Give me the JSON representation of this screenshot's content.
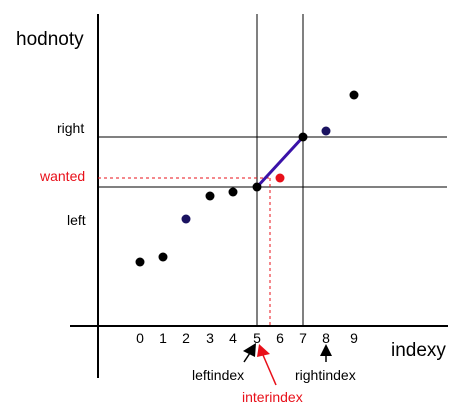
{
  "axis_labels": {
    "y": "hodnoty",
    "x": "indexy"
  },
  "level_labels": {
    "right": "right",
    "wanted": "wanted",
    "left": "left"
  },
  "pointer_labels": {
    "left": "leftindex",
    "inter": "interindex",
    "right": "rightindex"
  },
  "tick_labels": [
    "0",
    "1",
    "2",
    "3",
    "4",
    "5",
    "6",
    "7",
    "8",
    "9"
  ],
  "chart_data": {
    "type": "scatter",
    "x": [
      0,
      1,
      2,
      3,
      4,
      5,
      6,
      7,
      8,
      9
    ],
    "points": [
      {
        "x": 0,
        "color": "#000000"
      },
      {
        "x": 1,
        "color": "#000000"
      },
      {
        "x": 2,
        "color": "#1a1260"
      },
      {
        "x": 3,
        "color": "#000000"
      },
      {
        "x": 4,
        "color": "#000000"
      },
      {
        "x": 5,
        "color": "#000000"
      },
      {
        "x": 6,
        "color": "#e8101a",
        "role": "wanted"
      },
      {
        "x": 7,
        "color": "#000000"
      },
      {
        "x": 8,
        "color": "#1a1260"
      },
      {
        "x": 9,
        "color": "#000000"
      }
    ],
    "interpolation_segment": {
      "from": 5,
      "to": 7,
      "color": "#3a12a8"
    },
    "colors": {
      "accent": "#e8101a",
      "segment": "#3a12a8",
      "axis": "#000000"
    }
  }
}
